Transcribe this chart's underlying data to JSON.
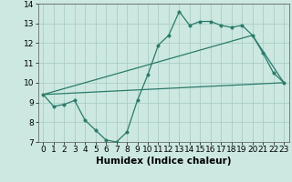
{
  "xlabel": "Humidex (Indice chaleur)",
  "xlim": [
    -0.5,
    23.5
  ],
  "ylim": [
    7,
    14
  ],
  "yticks": [
    7,
    8,
    9,
    10,
    11,
    12,
    13,
    14
  ],
  "xticks": [
    0,
    1,
    2,
    3,
    4,
    5,
    6,
    7,
    8,
    9,
    10,
    11,
    12,
    13,
    14,
    15,
    16,
    17,
    18,
    19,
    20,
    21,
    22,
    23
  ],
  "line_color": "#2a7a6a",
  "bg_color": "#cce8e0",
  "line1_x": [
    0,
    1,
    2,
    3,
    4,
    5,
    6,
    7,
    8,
    9,
    10,
    11,
    12,
    13,
    14,
    15,
    16,
    17,
    18,
    19,
    20,
    21,
    22,
    23
  ],
  "line1_y": [
    9.4,
    8.8,
    8.9,
    9.1,
    8.1,
    7.6,
    7.1,
    7.0,
    7.5,
    9.1,
    10.4,
    11.9,
    12.4,
    13.6,
    12.9,
    13.1,
    13.1,
    12.9,
    12.8,
    12.9,
    12.4,
    11.5,
    10.5,
    10.0
  ],
  "line2_x": [
    0,
    23
  ],
  "line2_y": [
    9.4,
    10.0
  ],
  "line3_x": [
    0,
    20,
    23
  ],
  "line3_y": [
    9.4,
    12.4,
    10.0
  ],
  "grid_color": "#aacec6",
  "marker_size": 2.5,
  "tick_fontsize": 6.5,
  "xlabel_fontsize": 7.5
}
